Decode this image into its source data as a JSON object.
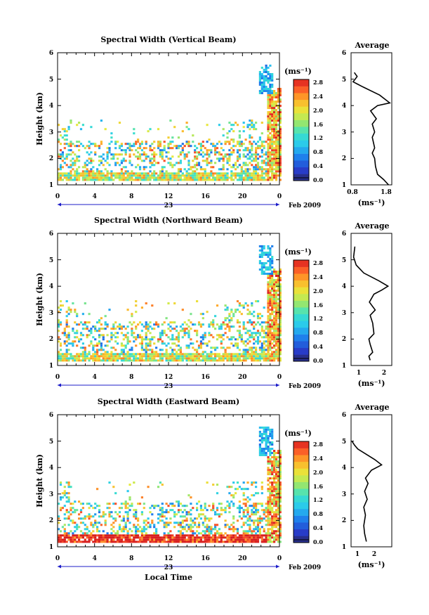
{
  "colorbar_unit": "(ms⁻¹)",
  "date_label": "Feb 2009",
  "chart_data": [
    {
      "type": "heatmap",
      "title": "Spectral Width (Vertical Beam)",
      "ylabel": "Height (km)",
      "xlabel": "",
      "x_ticks": [
        "0",
        "4",
        "8",
        "12",
        "16",
        "20",
        "0"
      ],
      "day_label": "23",
      "xlim": [
        0,
        24
      ],
      "ylim": [
        1,
        6
      ],
      "y_ticks": [
        "1",
        "2",
        "3",
        "4",
        "5",
        "6"
      ],
      "colorbar": {
        "ticks": [
          "0.0",
          "0.4",
          "0.8",
          "1.2",
          "1.6",
          "2.0",
          "2.4",
          "2.8"
        ],
        "range": [
          0,
          3.0
        ]
      },
      "profile": {
        "title": "Average",
        "xlabel": "(ms⁻¹)",
        "x_ticks": [
          "0.8",
          "1.8"
        ],
        "xlim": [
          0.8,
          1.8
        ],
        "ylim": [
          1,
          6
        ],
        "y_ticks": [
          "1",
          "2",
          "3",
          "4",
          "5",
          "6"
        ],
        "points": [
          [
            1.72,
            1.0
          ],
          [
            1.6,
            1.2
          ],
          [
            1.45,
            1.4
          ],
          [
            1.4,
            1.7
          ],
          [
            1.38,
            2.0
          ],
          [
            1.32,
            2.2
          ],
          [
            1.38,
            2.4
          ],
          [
            1.32,
            2.8
          ],
          [
            1.38,
            3.0
          ],
          [
            1.32,
            3.3
          ],
          [
            1.42,
            3.5
          ],
          [
            1.28,
            3.8
          ],
          [
            1.45,
            4.0
          ],
          [
            1.75,
            4.1
          ],
          [
            1.5,
            4.4
          ],
          [
            1.1,
            4.7
          ],
          [
            0.85,
            4.9
          ],
          [
            0.95,
            5.1
          ],
          [
            0.88,
            5.25
          ]
        ]
      }
    },
    {
      "type": "heatmap",
      "title": "Spectral Width (Northward Beam)",
      "ylabel": "Height (km)",
      "xlabel": "",
      "x_ticks": [
        "0",
        "4",
        "8",
        "12",
        "16",
        "20",
        "0"
      ],
      "day_label": "23",
      "xlim": [
        0,
        24
      ],
      "ylim": [
        1,
        6
      ],
      "y_ticks": [
        "1",
        "2",
        "3",
        "4",
        "5",
        "6"
      ],
      "colorbar": {
        "ticks": [
          "0.0",
          "0.4",
          "0.8",
          "1.2",
          "1.6",
          "2.0",
          "2.4",
          "2.8"
        ],
        "range": [
          0,
          3.0
        ]
      },
      "profile": {
        "title": "Average",
        "xlabel": "(ms⁻¹)",
        "x_ticks": [
          "1",
          "2"
        ],
        "xlim": [
          0.7,
          2.3
        ],
        "ylim": [
          1,
          6
        ],
        "y_ticks": [
          "1",
          "2",
          "3",
          "4",
          "5",
          "6"
        ],
        "points": [
          [
            1.45,
            1.2
          ],
          [
            1.4,
            1.35
          ],
          [
            1.55,
            1.5
          ],
          [
            1.45,
            1.8
          ],
          [
            1.4,
            2.0
          ],
          [
            1.6,
            2.2
          ],
          [
            1.55,
            2.6
          ],
          [
            1.45,
            2.9
          ],
          [
            1.65,
            3.1
          ],
          [
            1.42,
            3.4
          ],
          [
            1.6,
            3.7
          ],
          [
            1.9,
            3.85
          ],
          [
            2.15,
            4.0
          ],
          [
            1.8,
            4.2
          ],
          [
            1.2,
            4.5
          ],
          [
            0.9,
            4.8
          ],
          [
            0.8,
            5.1
          ],
          [
            0.85,
            5.5
          ]
        ]
      }
    },
    {
      "type": "heatmap",
      "title": "Spectral Width (Eastward Beam)",
      "ylabel": "Height (km)",
      "xlabel": "Local Time",
      "x_ticks": [
        "0",
        "4",
        "8",
        "12",
        "16",
        "20",
        "0"
      ],
      "day_label": "23",
      "xlim": [
        0,
        24
      ],
      "ylim": [
        1,
        6
      ],
      "y_ticks": [
        "1",
        "2",
        "3",
        "4",
        "5",
        "6"
      ],
      "colorbar": {
        "ticks": [
          "0.0",
          "0.4",
          "0.8",
          "1.2",
          "1.6",
          "2.0",
          "2.4",
          "2.8"
        ],
        "range": [
          0,
          3.0
        ]
      },
      "profile": {
        "title": "Average",
        "xlabel": "(ms⁻¹)",
        "x_ticks": [
          "1",
          "2"
        ],
        "xlim": [
          0.6,
          3.0
        ],
        "ylim": [
          1,
          6
        ],
        "y_ticks": [
          "1",
          "2",
          "3",
          "4",
          "5",
          "6"
        ],
        "points": [
          [
            1.5,
            1.2
          ],
          [
            1.4,
            1.5
          ],
          [
            1.35,
            1.8
          ],
          [
            1.45,
            2.2
          ],
          [
            1.35,
            2.5
          ],
          [
            1.55,
            2.8
          ],
          [
            1.4,
            3.1
          ],
          [
            1.6,
            3.4
          ],
          [
            1.45,
            3.6
          ],
          [
            1.8,
            3.9
          ],
          [
            2.4,
            4.1
          ],
          [
            2.0,
            4.3
          ],
          [
            1.5,
            4.5
          ],
          [
            1.0,
            4.7
          ],
          [
            0.8,
            4.85
          ],
          [
            0.65,
            5.0
          ]
        ]
      }
    }
  ]
}
